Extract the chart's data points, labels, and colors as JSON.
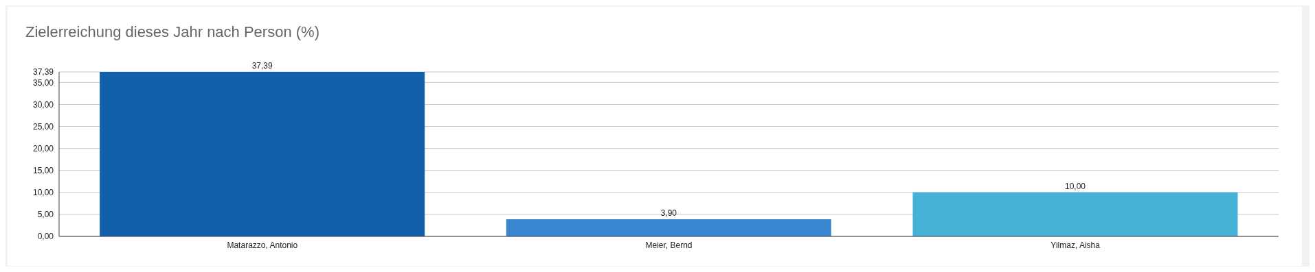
{
  "chart_data": {
    "type": "bar",
    "title": "Zielerreichung dieses Jahr nach Person (%)",
    "categories": [
      "Matarazzo, Antonio",
      "Meier, Bernd",
      "Yilmaz, Aisha"
    ],
    "values": [
      37.39,
      3.9,
      10
    ],
    "colors": [
      "#125fac",
      "#3a86d0",
      "#46b2d7"
    ],
    "value_labels": [
      "37,39",
      "3,90",
      "10,00"
    ],
    "ylim": [
      0,
      37.39
    ],
    "yticks": [
      {
        "value": 0,
        "label": "0,00"
      },
      {
        "value": 5,
        "label": "5,00"
      },
      {
        "value": 10,
        "label": "10,00"
      },
      {
        "value": 15,
        "label": "15,00"
      },
      {
        "value": 20,
        "label": "20,00"
      },
      {
        "value": 25,
        "label": "25,00"
      },
      {
        "value": 30,
        "label": "30,00"
      },
      {
        "value": 35,
        "label": "35,00"
      },
      {
        "value": 37.39,
        "label": "37,39"
      }
    ],
    "grid": "y"
  }
}
